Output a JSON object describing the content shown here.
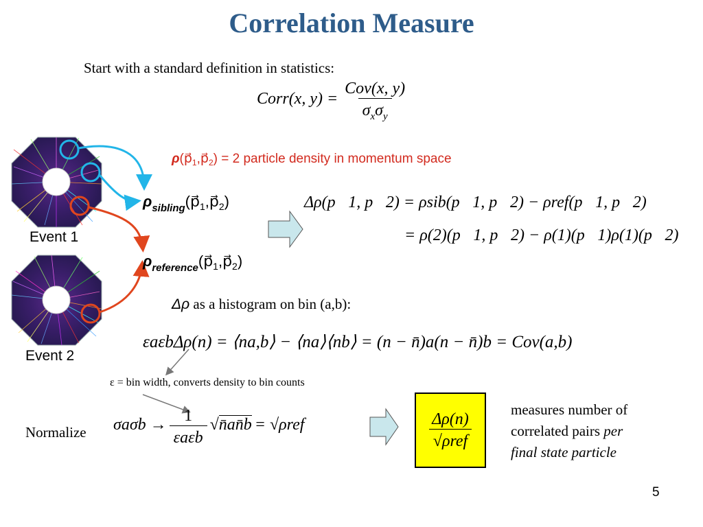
{
  "slide": {
    "title": "Correlation Measure",
    "intro": "Start with a standard definition in statistics:",
    "corr_lhs": "Corr(x, y) =",
    "corr_num": "Cov(x, y)",
    "corr_den": "σxσy",
    "density_label_rho": "ρ",
    "density_label_args": "(p⃗1,p⃗2)",
    "density_label_text": "= 2 particle density in momentum space",
    "rho_sibling": "ρ",
    "rho_sibling_sub": "sibling",
    "rho_sibling_args": "(p⃗1,p⃗2)",
    "rho_reference": "ρ",
    "rho_reference_sub": "reference",
    "rho_reference_args": "(p⃗1,p⃗2)",
    "event1_label": "Event 1",
    "event2_label": "Event 2",
    "delta_rho_line1": "Δρ(p⃗1, p⃗2) = ρsib(p⃗1, p⃗2) − ρref(p⃗1, p⃗2)",
    "delta_rho_line2": "= ρ(2)(p⃗1, p⃗2) − ρ(1)(p⃗1)ρ(1)(p⃗2)",
    "histogram_label_sym": "Δρ",
    "histogram_label_text": "as a histogram on bin (a,b):",
    "histogram_eq": "εaεbΔρ(n) = ⟨na,b⟩ − ⟨na⟩⟨nb⟩ = (n − n̄)a(n − n̄)b = Cov(a,b)",
    "epsilon_note": "ε = bin width, converts density to bin counts",
    "normalize_label": "Normalize",
    "normalize_eq_lhs": "σaσb →",
    "normalize_frac_num": "1",
    "normalize_frac_den": "εaεb",
    "normalize_sqrt": "n̄an̄b",
    "normalize_eq_rhs": "= √ρref",
    "boxed_num": "Δρ(n)",
    "boxed_den": "ρref",
    "measures_line1": "measures number of",
    "measures_line2_plain": "correlated pairs",
    "measures_line2_italic": "per",
    "measures_line3_italic": "final state particle",
    "page_number": "5"
  },
  "colors": {
    "title": "#2E5C8A",
    "red_text": "#D22A1E",
    "cyan_arrow": "#22B5E8",
    "orange_arrow": "#E0461E",
    "box_fill": "#FFFF00",
    "block_arrow_fill": "#C9E7EC"
  }
}
